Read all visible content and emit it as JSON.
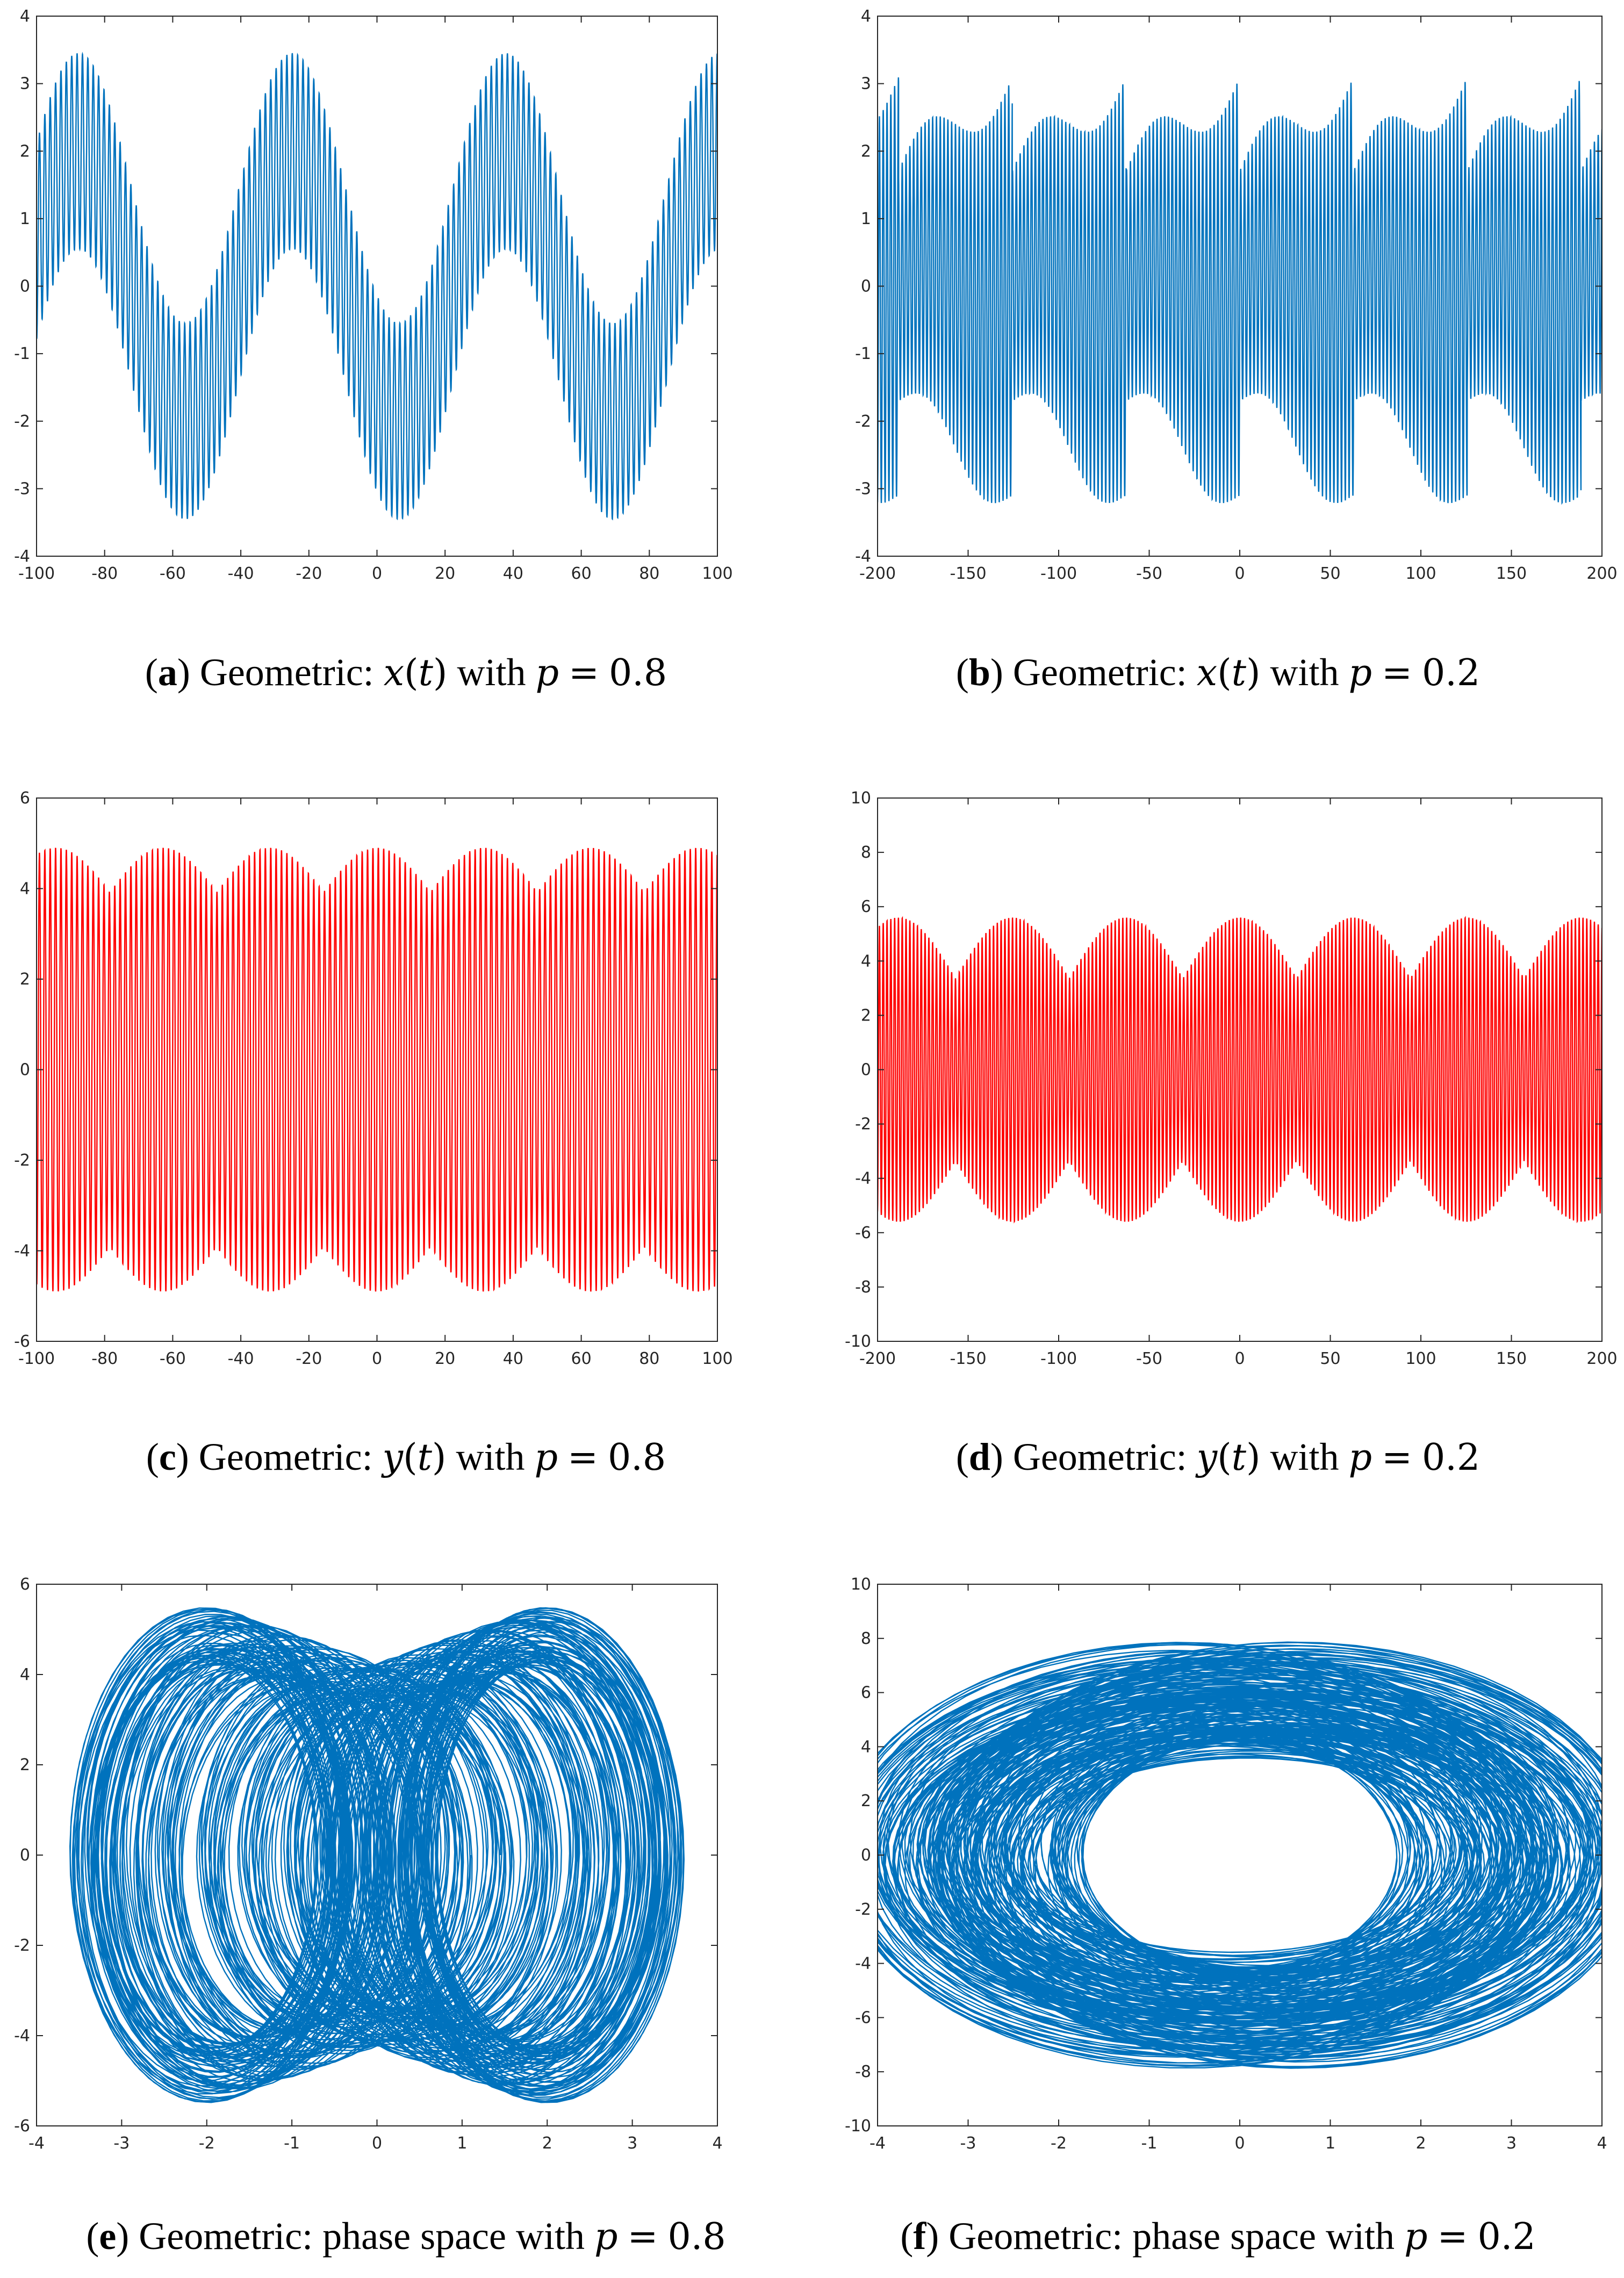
{
  "chart_data": [
    {
      "id": "a",
      "type": "line",
      "mode": "time",
      "caption": {
        "label": "a",
        "text": "Geometric:",
        "lhs": "x",
        "arg": "t",
        "mid": "with",
        "pvar": "p",
        "eq": "=",
        "pval": "0.8"
      },
      "color": "#0072BD",
      "xlim": [
        -100,
        100
      ],
      "ylim": [
        -4,
        4
      ],
      "xticks": [
        -100,
        -80,
        -60,
        -40,
        -20,
        0,
        20,
        40,
        60,
        80,
        100
      ],
      "xtick_labels": [
        "-100",
        "-80",
        "-60",
        "-40",
        "-20",
        "0",
        "20",
        "40",
        "60",
        "80",
        "100"
      ],
      "yticks": [
        -4,
        -3,
        -2,
        -1,
        0,
        1,
        2,
        3,
        4
      ],
      "ytick_labels": [
        "-4",
        "-3",
        "-2",
        "-1",
        "0",
        "1",
        "2",
        "3",
        "4"
      ],
      "signal": {
        "slow_amp": 2.0,
        "slow_period": 62.8,
        "slow_phase": 4.06,
        "fast_amp": 1.45,
        "fast_period": 1.58,
        "amp_mod": 0.0
      }
    },
    {
      "id": "b",
      "type": "line",
      "mode": "time",
      "caption": {
        "label": "b",
        "text": "Geometric:",
        "lhs": "x",
        "arg": "t",
        "mid": "with",
        "pvar": "p",
        "eq": "=",
        "pval": "0.2"
      },
      "color": "#0072BD",
      "xlim": [
        -200,
        200
      ],
      "ylim": [
        -4,
        4
      ],
      "xticks": [
        -200,
        -150,
        -100,
        -50,
        0,
        50,
        100,
        150,
        200
      ],
      "xtick_labels": [
        "-200",
        "-150",
        "-100",
        "-50",
        "0",
        "50",
        "100",
        "150",
        "200"
      ],
      "yticks": [
        -4,
        -3,
        -2,
        -1,
        0,
        1,
        2,
        3,
        4
      ],
      "ytick_labels": [
        "-4",
        "-3",
        "-2",
        "-1",
        "0",
        "1",
        "2",
        "3",
        "4"
      ],
      "signal": {
        "slow_amp": 0.4,
        "slow_period": 62.8,
        "slow_phase": 0.0,
        "fast_amp": 3.1,
        "fast_period": 2.1,
        "amp_mod": 0.5
      }
    },
    {
      "id": "c",
      "type": "line",
      "mode": "time",
      "caption": {
        "label": "c",
        "text": "Geometric:",
        "lhs": "y",
        "arg": "t",
        "mid": "with",
        "pvar": "p",
        "eq": "=",
        "pval": "0.8"
      },
      "color": "#FF0000",
      "xlim": [
        -100,
        100
      ],
      "ylim": [
        -6,
        6
      ],
      "xticks": [
        -100,
        -80,
        -60,
        -40,
        -20,
        0,
        20,
        40,
        60,
        80,
        100
      ],
      "xtick_labels": [
        "-100",
        "-80",
        "-60",
        "-40",
        "-20",
        "0",
        "20",
        "40",
        "60",
        "80",
        "100"
      ],
      "yticks": [
        -6,
        -4,
        -2,
        0,
        2,
        4,
        6
      ],
      "ytick_labels": [
        "-6",
        "-4",
        "-2",
        "0",
        "2",
        "4",
        "6"
      ],
      "signal": {
        "slow_amp": 0.0,
        "slow_period": 62.8,
        "slow_phase": 0.0,
        "fast_amp": 4.9,
        "fast_period": 1.58,
        "amp_mod": 0.2,
        "mod_period": 31.4
      }
    },
    {
      "id": "d",
      "type": "line",
      "mode": "time",
      "caption": {
        "label": "d",
        "text": "Geometric:",
        "lhs": "y",
        "arg": "t",
        "mid": "with",
        "pvar": "p",
        "eq": "=",
        "pval": "0.2"
      },
      "color": "#FF0000",
      "xlim": [
        -200,
        200
      ],
      "ylim": [
        -10,
        10
      ],
      "xticks": [
        -200,
        -150,
        -100,
        -50,
        0,
        50,
        100,
        150,
        200
      ],
      "xtick_labels": [
        "-200",
        "-150",
        "-100",
        "-50",
        "0",
        "50",
        "100",
        "150",
        "200"
      ],
      "yticks": [
        -10,
        -8,
        -6,
        -4,
        -2,
        0,
        2,
        4,
        6,
        8,
        10
      ],
      "ytick_labels": [
        "-10",
        "-8",
        "-6",
        "-4",
        "-2",
        "0",
        "2",
        "4",
        "6",
        "8",
        "10"
      ],
      "signal": {
        "slow_amp": 0.0,
        "slow_period": 62.8,
        "slow_phase": 0.0,
        "fast_amp": 5.6,
        "fast_period": 2.1,
        "amp_mod": 0.4,
        "mod_period": 62.8
      }
    },
    {
      "id": "e",
      "type": "line",
      "mode": "phase",
      "caption": {
        "label": "e",
        "text": "Geometric: phase space",
        "lhs": "",
        "arg": "",
        "mid": "with",
        "pvar": "p",
        "eq": "=",
        "pval": "0.8"
      },
      "color": "#0072BD",
      "xlim": [
        -4,
        4
      ],
      "ylim": [
        -6,
        6
      ],
      "xticks": [
        -4,
        -3,
        -2,
        -1,
        0,
        1,
        2,
        3,
        4
      ],
      "xtick_labels": [
        "-4",
        "-3",
        "-2",
        "-1",
        "0",
        "1",
        "2",
        "3",
        "4"
      ],
      "yticks": [
        -6,
        -4,
        -2,
        0,
        2,
        4,
        6
      ],
      "ytick_labels": [
        "-6",
        "-4",
        "-2",
        "0",
        "2",
        "4",
        "6"
      ],
      "signal": {
        "cx": 2.0,
        "ax": 1.45,
        "ay": 4.9,
        "shift_period": 62.8,
        "loops": 260,
        "spread": 0.12
      }
    },
    {
      "id": "f",
      "type": "line",
      "mode": "phase",
      "caption": {
        "label": "f",
        "text": "Geometric: phase space",
        "lhs": "",
        "arg": "",
        "mid": "with",
        "pvar": "p",
        "eq": "=",
        "pval": "0.2"
      },
      "color": "#0072BD",
      "xlim": [
        -4,
        4
      ],
      "ylim": [
        -10,
        10
      ],
      "xticks": [
        -4,
        -3,
        -2,
        -1,
        0,
        1,
        2,
        3,
        4
      ],
      "xtick_labels": [
        "-4",
        "-3",
        "-2",
        "-1",
        "0",
        "1",
        "2",
        "3",
        "4"
      ],
      "yticks": [
        -10,
        -8,
        -6,
        -4,
        -2,
        0,
        2,
        4,
        6,
        8,
        10
      ],
      "ytick_labels": [
        "-10",
        "-8",
        "-6",
        "-4",
        "-2",
        "0",
        "2",
        "4",
        "6",
        "8",
        "10"
      ],
      "signal": {
        "cx": 0.6,
        "ax": 3.1,
        "ay": 6.3,
        "shift_period": 62.8,
        "loops": 220,
        "spread": 0.25
      }
    }
  ]
}
